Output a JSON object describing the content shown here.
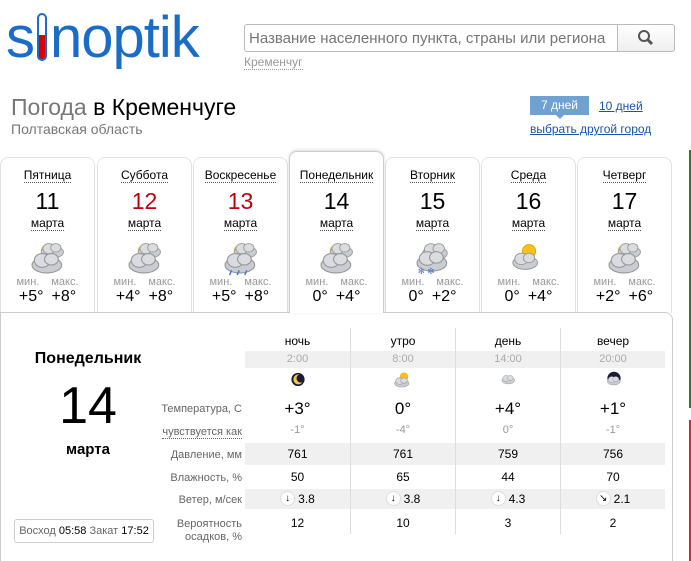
{
  "logo": "sinoptik",
  "search": {
    "placeholder": "Название населенного пункта, страны или региона",
    "recent": "Кременчуг"
  },
  "header": {
    "title_prefix": "Погода",
    "title_city": "в Кременчуге",
    "region": "Полтавская область",
    "tab_7": "7 дней",
    "tab_10": "10 дней",
    "other_city": "выбрать другой город"
  },
  "colors": {
    "brand": "#1a6dc7",
    "weekend": "#c0000b",
    "tab_active": "#6fa2d1"
  },
  "days": [
    {
      "name": "Пятница",
      "num": "11",
      "month": "марта",
      "icon": "partly-cloudy-icon",
      "min_label": "мин.",
      "max_label": "макс.",
      "min": "+5°",
      "max": "+8°",
      "weekend": false
    },
    {
      "name": "Суббота",
      "num": "12",
      "month": "марта",
      "icon": "partly-cloudy-icon",
      "min_label": "мин.",
      "max_label": "макс.",
      "min": "+4°",
      "max": "+8°",
      "weekend": true
    },
    {
      "name": "Воскресенье",
      "num": "13",
      "month": "марта",
      "icon": "rain-icon",
      "min_label": "мин.",
      "max_label": "макс.",
      "min": "+5°",
      "max": "+8°",
      "weekend": true
    },
    {
      "name": "Понедельник",
      "num": "14",
      "month": "марта",
      "icon": "partly-cloudy-icon",
      "min_label": "мин.",
      "max_label": "макс.",
      "min": "0°",
      "max": "+4°",
      "weekend": false,
      "active": true
    },
    {
      "name": "Вторник",
      "num": "15",
      "month": "марта",
      "icon": "snow-rain-icon",
      "min_label": "мин.",
      "max_label": "макс.",
      "min": "0°",
      "max": "+2°",
      "weekend": false
    },
    {
      "name": "Среда",
      "num": "16",
      "month": "марта",
      "icon": "sun-cloud-icon",
      "min_label": "мин.",
      "max_label": "макс.",
      "min": "0°",
      "max": "+4°",
      "weekend": false
    },
    {
      "name": "Четверг",
      "num": "17",
      "month": "марта",
      "icon": "partly-cloudy-icon",
      "min_label": "мин.",
      "max_label": "макс.",
      "min": "+2°",
      "max": "+6°",
      "weekend": false
    }
  ],
  "detail": {
    "day": "Понедельник",
    "num": "14",
    "month": "марта",
    "sunrise_label": "Восход",
    "sunrise": "05:58",
    "sunset_label": "Закат",
    "sunset": "17:52",
    "labels": {
      "temp": "Температура, С",
      "feels": "чувствуется как",
      "pressure": "Давление, мм",
      "humidity": "Влажность, %",
      "wind": "Ветер, м/сек",
      "precip1": "Вероятность",
      "precip2": "осадков, %"
    },
    "columns": [
      {
        "name": "ночь",
        "time": "2:00",
        "icon": "moon-icon",
        "temp": "+3°",
        "feels": "-1°",
        "pressure": "761",
        "humidity": "50",
        "wind_dir": "↓",
        "wind": "3.8",
        "precip": "12"
      },
      {
        "name": "утро",
        "time": "8:00",
        "icon": "sun-cloud-icon",
        "temp": "0°",
        "feels": "-4°",
        "pressure": "761",
        "humidity": "65",
        "wind_dir": "↓",
        "wind": "3.8",
        "precip": "10"
      },
      {
        "name": "день",
        "time": "14:00",
        "icon": "cloud-icon",
        "temp": "+4°",
        "feels": "0°",
        "pressure": "759",
        "humidity": "44",
        "wind_dir": "↓",
        "wind": "4.3",
        "precip": "3"
      },
      {
        "name": "вечер",
        "time": "20:00",
        "icon": "moon-cloud-icon",
        "temp": "+1°",
        "feels": "-1°",
        "pressure": "756",
        "humidity": "70",
        "wind_dir": "↘",
        "wind": "2.1",
        "precip": "2"
      }
    ]
  }
}
